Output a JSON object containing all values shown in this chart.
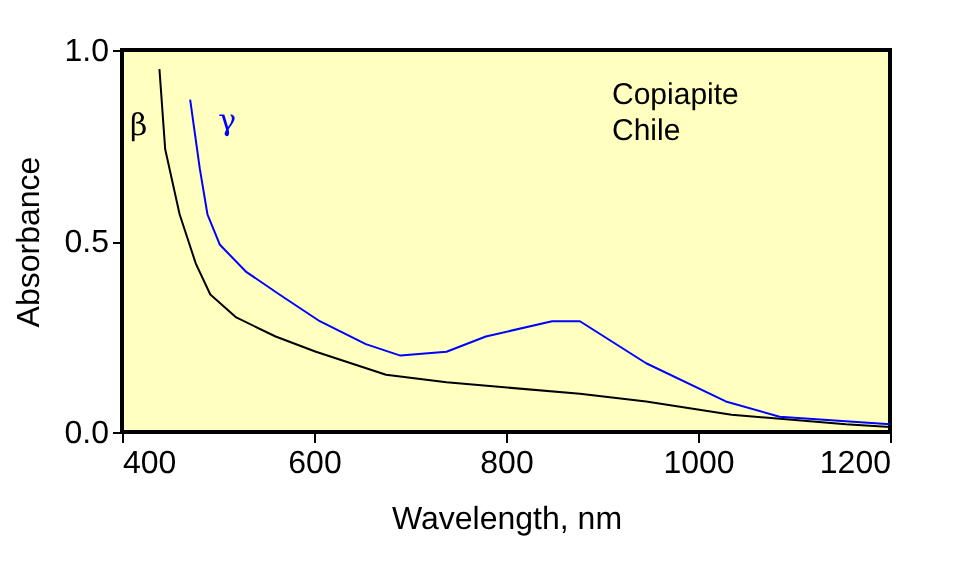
{
  "chart_data": {
    "type": "line",
    "xlabel": "Wavelength, nm",
    "ylabel": "Absorbance",
    "xlim": [
      400,
      1200
    ],
    "ylim": [
      0,
      1
    ],
    "xticks": [
      400,
      600,
      800,
      1000,
      1200
    ],
    "yticks": [
      {
        "value": 0,
        "label": "0.0"
      },
      0.5,
      {
        "value": 1,
        "label": "1.0"
      }
    ],
    "grid": false,
    "marker": "none",
    "line_style": "solid",
    "annotations": [
      "Copiapite\nChile"
    ],
    "series": [
      {
        "name": "β",
        "color": "#000000",
        "x": [
          439,
          445,
          460,
          477,
          492,
          519,
          560,
          602,
          675,
          738,
          877,
          946,
          1035,
          1154,
          1200
        ],
        "values": [
          0.95,
          0.74,
          0.57,
          0.44,
          0.36,
          0.3,
          0.25,
          0.21,
          0.15,
          0.13,
          0.1,
          0.08,
          0.045,
          0.02,
          0.013
        ]
      },
      {
        "name": "γ",
        "color": "#0000ff",
        "x": [
          471,
          481,
          489,
          502,
          529,
          564,
          606,
          654,
          690,
          738,
          779,
          848,
          877,
          946,
          1029,
          1085,
          1200
        ],
        "values": [
          0.87,
          0.69,
          0.57,
          0.49,
          0.42,
          0.36,
          0.29,
          0.23,
          0.2,
          0.21,
          0.25,
          0.29,
          0.29,
          0.18,
          0.08,
          0.04,
          0.02
        ]
      }
    ]
  }
}
